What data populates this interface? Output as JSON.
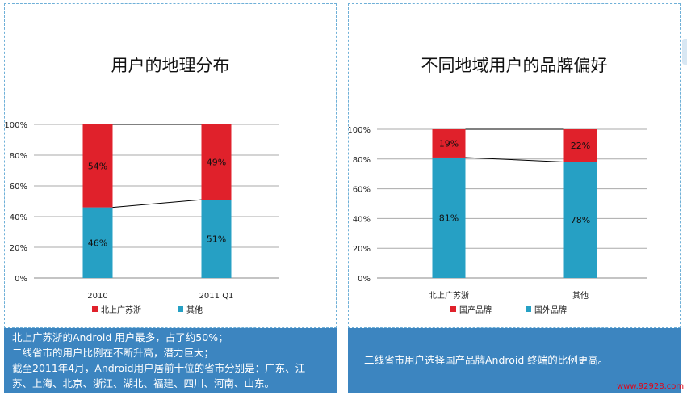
{
  "chart_data": [
    {
      "type": "bar",
      "stacked": true,
      "title": "用户的地理分布",
      "categories": [
        "2010",
        "2011 Q1"
      ],
      "series": [
        {
          "name": "北上广苏浙",
          "values": [
            54,
            49
          ],
          "labels": [
            "54%",
            "49%"
          ],
          "color": "#e0212b"
        },
        {
          "name": "其他",
          "values": [
            46,
            51
          ],
          "labels": [
            "46%",
            "51%"
          ],
          "color": "#26a0c4"
        }
      ],
      "yticks": [
        "0%",
        "20%",
        "40%",
        "60%",
        "80%",
        "100%"
      ],
      "ylim": [
        0,
        100
      ],
      "legend_position": "bottom"
    },
    {
      "type": "bar",
      "stacked": true,
      "title": "不同地域用户的品牌偏好",
      "categories": [
        "北上广苏浙",
        "其他"
      ],
      "series": [
        {
          "name": "国产品牌",
          "values": [
            19,
            22
          ],
          "labels": [
            "19%",
            "22%"
          ],
          "color": "#e0212b"
        },
        {
          "name": "国外品牌",
          "values": [
            81,
            78
          ],
          "labels": [
            "81%",
            "78%"
          ],
          "color": "#26a0c4"
        }
      ],
      "yticks": [
        "0%",
        "20%",
        "40%",
        "60%",
        "80%",
        "100%"
      ],
      "ylim": [
        0,
        100
      ],
      "legend_position": "bottom"
    }
  ],
  "notes": {
    "left": [
      "北上广苏浙的Android 用户最多，占了约50%；",
      "二线省市的用户比例在不断升高，潜力巨大；",
      "截至2011年4月，Android用户居前十位的省市分别是：广东、江",
      "苏、上海、北京、浙江、湖北、福建、四川、河南、山东。"
    ],
    "right": "二线省市用户选择国产品牌Android 终端的比例更高。"
  },
  "watermark": "www.92928.com"
}
